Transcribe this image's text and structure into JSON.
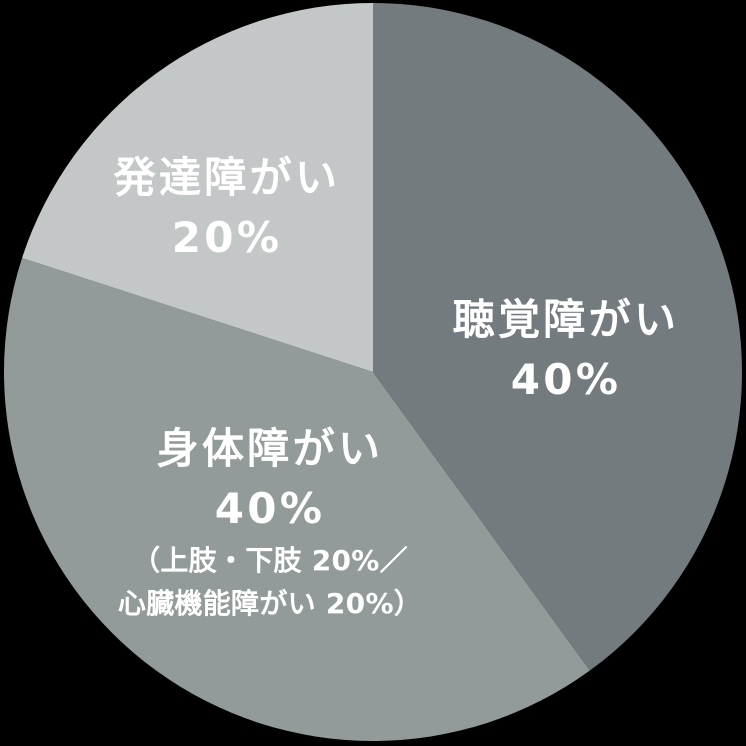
{
  "page": {
    "background": "#000000"
  },
  "chart_data": {
    "type": "pie",
    "title": "",
    "start_angle": "top",
    "direction": "clockwise",
    "background": "#000000",
    "label_color": "#ffffff",
    "legend_position": "none",
    "labels_inside_slices": true,
    "slices": [
      {
        "name": "hearing",
        "label": "聴覚障がい",
        "percent": 40,
        "percent_label": "40%",
        "color": "#737b7e"
      },
      {
        "name": "physical",
        "label": "身体障がい",
        "percent": 40,
        "percent_label": "40%",
        "color": "#939a9a",
        "note_line1": "（上肢・下肢 20%／",
        "note_line2": "心臓機能障がい 20%）"
      },
      {
        "name": "developmental",
        "label": "発達障がい",
        "percent": 20,
        "percent_label": "20%",
        "color": "#c3c7c8"
      }
    ]
  }
}
